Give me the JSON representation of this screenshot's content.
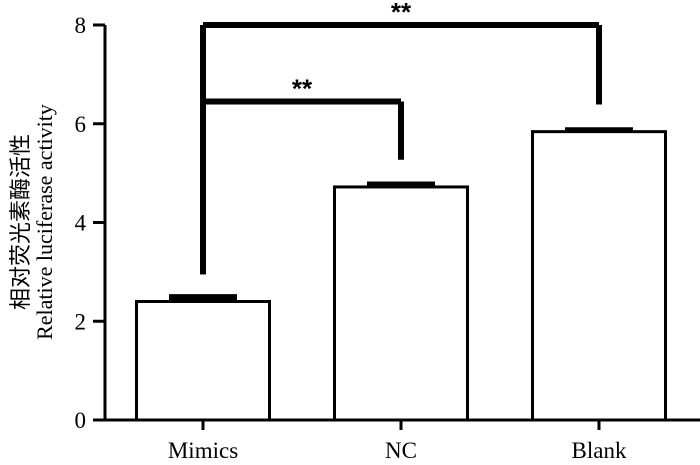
{
  "chart_data": {
    "type": "bar",
    "categories": [
      "Mimics",
      "NC",
      "Blank"
    ],
    "values": [
      2.4,
      4.72,
      5.84
    ],
    "errors": [
      0.12,
      0.08,
      0.06
    ],
    "ylabel_cn": "相对荧光素酶活性",
    "ylabel_en": "Relative luciferase activity",
    "ylim": [
      0,
      8
    ],
    "yticks": [
      0,
      2,
      4,
      6,
      8
    ],
    "significance": [
      {
        "from": "Mimics",
        "to": "NC",
        "label": "**",
        "level": 6.45
      },
      {
        "from": "Mimics",
        "to": "Blank",
        "label": "**",
        "level": 8.0
      }
    ],
    "bar_color": "#ffffff",
    "line_color": "#000000"
  }
}
